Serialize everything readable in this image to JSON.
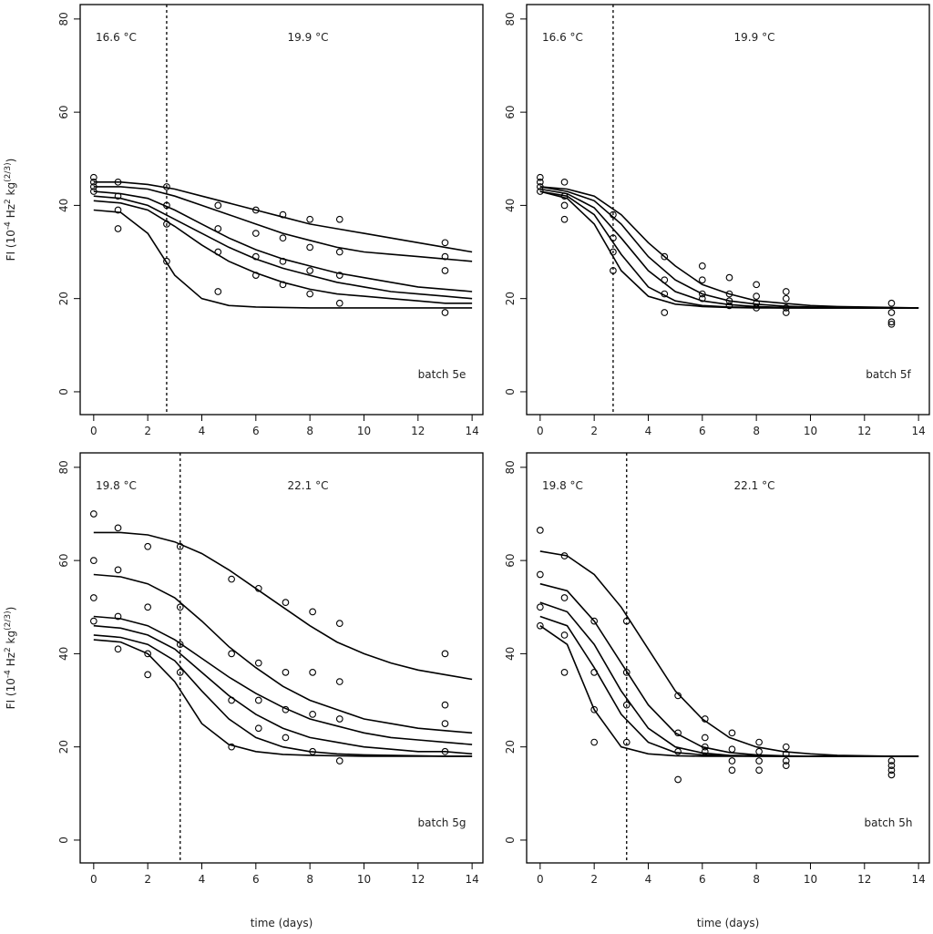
{
  "chart_data": [
    {
      "type": "line",
      "color": "#000000",
      "xlim": [
        -0.5,
        14.4
      ],
      "ylim": [
        -4.9,
        83.1
      ],
      "xticks": [
        0,
        2,
        4,
        6,
        8,
        10,
        12,
        14
      ],
      "yticks": [
        0,
        20,
        40,
        60,
        80
      ],
      "ylabel": [
        {
          "text": "FI  (10"
        },
        {
          "text": "-4",
          "sup": true
        },
        {
          "text": " Hz"
        },
        {
          "text": "2",
          "sup": true
        },
        {
          "text": " kg"
        },
        {
          "text": "(2/3)",
          "sup": true
        },
        {
          "text": ")"
        }
      ],
      "left_temp": "16.6 °C",
      "right_temp": "19.9 °C",
      "batch": "batch 5e",
      "vline": 2.7,
      "x": [
        0,
        1,
        2,
        3,
        4,
        5,
        6,
        7,
        8,
        9,
        10,
        11,
        12,
        13,
        14
      ],
      "series": [
        {
          "values": [
            45,
            45,
            44.5,
            43.5,
            42,
            40.5,
            39,
            37.5,
            36,
            35,
            34,
            33,
            32,
            31,
            30
          ]
        },
        {
          "values": [
            44,
            44,
            43.5,
            42,
            40,
            38,
            36,
            34,
            32.5,
            31,
            30,
            29.5,
            29,
            28.5,
            28
          ]
        },
        {
          "values": [
            43,
            42.5,
            41.5,
            39,
            36,
            33,
            30.5,
            28.5,
            27,
            25.5,
            24.5,
            23.5,
            22.5,
            22,
            21.5
          ]
        },
        {
          "values": [
            42,
            41.5,
            40,
            37,
            34,
            31,
            28.5,
            26.5,
            25,
            23.5,
            22.5,
            21.5,
            21,
            20.5,
            20
          ]
        },
        {
          "values": [
            41,
            40.5,
            39,
            35.5,
            31.5,
            28,
            25.5,
            23.5,
            22,
            21,
            20.5,
            20,
            19.5,
            19,
            19
          ]
        },
        {
          "values": [
            39,
            38.5,
            34,
            25,
            20,
            18.5,
            18.2,
            18.1,
            18,
            18,
            18,
            18,
            18,
            18,
            18
          ]
        }
      ],
      "points": {
        "x": [
          0,
          0,
          0,
          0,
          0.9,
          0.9,
          0.9,
          0.9,
          2.7,
          2.7,
          2.7,
          2.7,
          4.6,
          4.6,
          4.6,
          4.6,
          6,
          6,
          6,
          6,
          7,
          7,
          7,
          7,
          8,
          8,
          8,
          8,
          9.1,
          9.1,
          9.1,
          9.1,
          13,
          13,
          13,
          13
        ],
        "y": [
          46,
          45,
          44,
          43,
          45,
          42,
          39,
          35,
          44,
          40,
          36,
          28,
          40,
          35,
          30,
          21.5,
          39,
          34,
          29,
          25,
          38,
          33,
          28,
          23,
          37,
          31,
          26,
          21,
          37,
          30,
          25,
          19,
          32,
          29,
          26,
          17
        ]
      }
    },
    {
      "type": "line",
      "color": "#000000",
      "xlim": [
        -0.5,
        14.4
      ],
      "ylim": [
        -4.9,
        83.1
      ],
      "xticks": [
        0,
        2,
        4,
        6,
        8,
        10,
        12,
        14
      ],
      "yticks": [
        0,
        20,
        40,
        60,
        80
      ],
      "left_temp": "16.6 °C",
      "right_temp": "19.9 °C",
      "batch": "batch 5f",
      "vline": 2.7,
      "x": [
        0,
        1,
        2,
        3,
        4,
        5,
        6,
        7,
        8,
        9,
        10,
        11,
        12,
        13,
        14
      ],
      "series": [
        {
          "values": [
            44,
            43.5,
            42,
            38,
            32,
            27,
            23,
            21,
            19.5,
            19,
            18.5,
            18.3,
            18.2,
            18.1,
            18
          ]
        },
        {
          "values": [
            44,
            43,
            41,
            36,
            29,
            24,
            21,
            19.5,
            18.8,
            18.4,
            18.2,
            18.1,
            18,
            18,
            18
          ]
        },
        {
          "values": [
            43.5,
            42.5,
            39.5,
            33,
            26,
            21.5,
            19.5,
            18.7,
            18.3,
            18.1,
            18,
            18,
            18,
            18,
            18
          ]
        },
        {
          "values": [
            43,
            42,
            38,
            29.5,
            22.5,
            19.5,
            18.5,
            18.2,
            18.1,
            18,
            18,
            18,
            18,
            18,
            18
          ]
        },
        {
          "values": [
            43,
            41.5,
            36,
            26,
            20.5,
            18.8,
            18.3,
            18.1,
            18,
            18,
            18,
            18,
            18,
            18,
            18
          ]
        }
      ],
      "points": {
        "x": [
          0,
          0,
          0,
          0,
          0.9,
          0.9,
          0.9,
          0.9,
          2.7,
          2.7,
          2.7,
          2.7,
          4.6,
          4.6,
          4.6,
          4.6,
          6,
          6,
          6,
          6,
          7,
          7,
          7,
          7,
          8,
          8,
          8,
          8,
          9.1,
          9.1,
          9.1,
          9.1,
          13,
          13,
          13,
          13
        ],
        "y": [
          46,
          45,
          44,
          43,
          45,
          42,
          40,
          37,
          38,
          33,
          30,
          26,
          29,
          24,
          21,
          17,
          27,
          24,
          21,
          20,
          24.5,
          21,
          19.5,
          18.5,
          23,
          20.5,
          19,
          18,
          21.5,
          20,
          18,
          17,
          19,
          17,
          15,
          14.5
        ]
      }
    },
    {
      "type": "line",
      "color": "#000000",
      "xlim": [
        -0.5,
        14.4
      ],
      "ylim": [
        -4.9,
        83.1
      ],
      "xticks": [
        0,
        2,
        4,
        6,
        8,
        10,
        12,
        14
      ],
      "yticks": [
        0,
        20,
        40,
        60,
        80
      ],
      "ylabel": [
        {
          "text": "FI  (10"
        },
        {
          "text": "-4",
          "sup": true
        },
        {
          "text": " Hz"
        },
        {
          "text": "2",
          "sup": true
        },
        {
          "text": " kg"
        },
        {
          "text": "(2/3)",
          "sup": true
        },
        {
          "text": ")"
        }
      ],
      "xlabel": "time (days)",
      "left_temp": "19.8 °C",
      "right_temp": "22.1 °C",
      "batch": "batch 5g",
      "vline": 3.2,
      "x": [
        0,
        1,
        2,
        3,
        4,
        5,
        6,
        7,
        8,
        9,
        10,
        11,
        12,
        13,
        14
      ],
      "series": [
        {
          "values": [
            66,
            66,
            65.5,
            64,
            61.5,
            58,
            54,
            50,
            46,
            42.5,
            40,
            38,
            36.5,
            35.5,
            34.5
          ]
        },
        {
          "values": [
            57,
            56.5,
            55,
            52,
            47,
            41.5,
            37,
            33,
            30,
            28,
            26,
            25,
            24,
            23.5,
            23
          ]
        },
        {
          "values": [
            48,
            47.5,
            46,
            43,
            39,
            35,
            31.5,
            28.5,
            26,
            24.5,
            23,
            22,
            21.5,
            21,
            20.5
          ]
        },
        {
          "values": [
            46,
            45.5,
            44,
            41,
            36,
            31,
            27,
            24,
            22,
            21,
            20,
            19.5,
            19,
            19,
            18.5
          ]
        },
        {
          "values": [
            44,
            43.5,
            42,
            38.5,
            32,
            26,
            22,
            20,
            19,
            18.5,
            18.3,
            18.2,
            18.1,
            18,
            18
          ]
        },
        {
          "values": [
            43,
            42.5,
            40,
            34,
            25,
            20.5,
            19,
            18.4,
            18.2,
            18.1,
            18,
            18,
            18,
            18,
            18
          ]
        }
      ],
      "points": {
        "x": [
          0,
          0,
          0,
          0,
          0.9,
          0.9,
          0.9,
          0.9,
          2,
          2,
          2,
          2,
          3.2,
          3.2,
          3.2,
          3.2,
          5.1,
          5.1,
          5.1,
          5.1,
          6.1,
          6.1,
          6.1,
          6.1,
          7.1,
          7.1,
          7.1,
          7.1,
          8.1,
          8.1,
          8.1,
          8.1,
          9.1,
          9.1,
          9.1,
          9.1,
          13,
          13,
          13,
          13
        ],
        "y": [
          70,
          60,
          52,
          47,
          67,
          58,
          48,
          41,
          63,
          50,
          40,
          35.5,
          63,
          50,
          42,
          36,
          56,
          40,
          30,
          20,
          54,
          38,
          30,
          24,
          51,
          36,
          28,
          22,
          49,
          36,
          27,
          19,
          46.5,
          34,
          26,
          17,
          40,
          29,
          25,
          19
        ]
      }
    },
    {
      "type": "line",
      "color": "#000000",
      "xlim": [
        -0.5,
        14.4
      ],
      "ylim": [
        -4.9,
        83.1
      ],
      "xticks": [
        0,
        2,
        4,
        6,
        8,
        10,
        12,
        14
      ],
      "yticks": [
        0,
        20,
        40,
        60,
        80
      ],
      "xlabel": "time (days)",
      "left_temp": "19.8 °C",
      "right_temp": "22.1 °C",
      "batch": "batch 5h",
      "vline": 3.2,
      "x": [
        0,
        1,
        2,
        3,
        4,
        5,
        6,
        7,
        8,
        9,
        10,
        11,
        12,
        13,
        14
      ],
      "series": [
        {
          "values": [
            62,
            61,
            57,
            50,
            41,
            32,
            26,
            22,
            20,
            19,
            18.5,
            18.2,
            18.1,
            18,
            18
          ]
        },
        {
          "values": [
            55,
            53.5,
            47,
            38,
            29,
            23,
            20,
            18.8,
            18.3,
            18.1,
            18,
            18,
            18,
            18,
            18
          ]
        },
        {
          "values": [
            51,
            49,
            42,
            32,
            24,
            20,
            18.7,
            18.2,
            18.1,
            18,
            18,
            18,
            18,
            18,
            18
          ]
        },
        {
          "values": [
            48,
            46,
            37,
            27,
            21,
            18.8,
            18.3,
            18.1,
            18,
            18,
            18,
            18,
            18,
            18,
            18
          ]
        },
        {
          "values": [
            46,
            42,
            28,
            20,
            18.5,
            18.1,
            18,
            18,
            18,
            18,
            18,
            18,
            18,
            18,
            18
          ]
        }
      ],
      "points": {
        "x": [
          0,
          0,
          0,
          0,
          0.9,
          0.9,
          0.9,
          0.9,
          2,
          2,
          2,
          2,
          3.2,
          3.2,
          3.2,
          3.2,
          5.1,
          5.1,
          5.1,
          5.1,
          6.1,
          6.1,
          6.1,
          6.1,
          7.1,
          7.1,
          7.1,
          7.1,
          8.1,
          8.1,
          8.1,
          8.1,
          9.1,
          9.1,
          9.1,
          9.1,
          13,
          13,
          13,
          13
        ],
        "y": [
          66.5,
          57,
          50,
          46,
          61,
          52,
          44,
          36,
          47,
          36,
          28,
          21,
          47,
          36,
          29,
          21,
          31,
          23,
          19,
          13,
          26,
          22,
          20,
          19,
          23,
          19.5,
          17,
          15,
          21,
          19,
          17,
          15,
          20,
          18.5,
          17,
          16,
          17,
          16,
          15,
          14
        ]
      }
    }
  ]
}
